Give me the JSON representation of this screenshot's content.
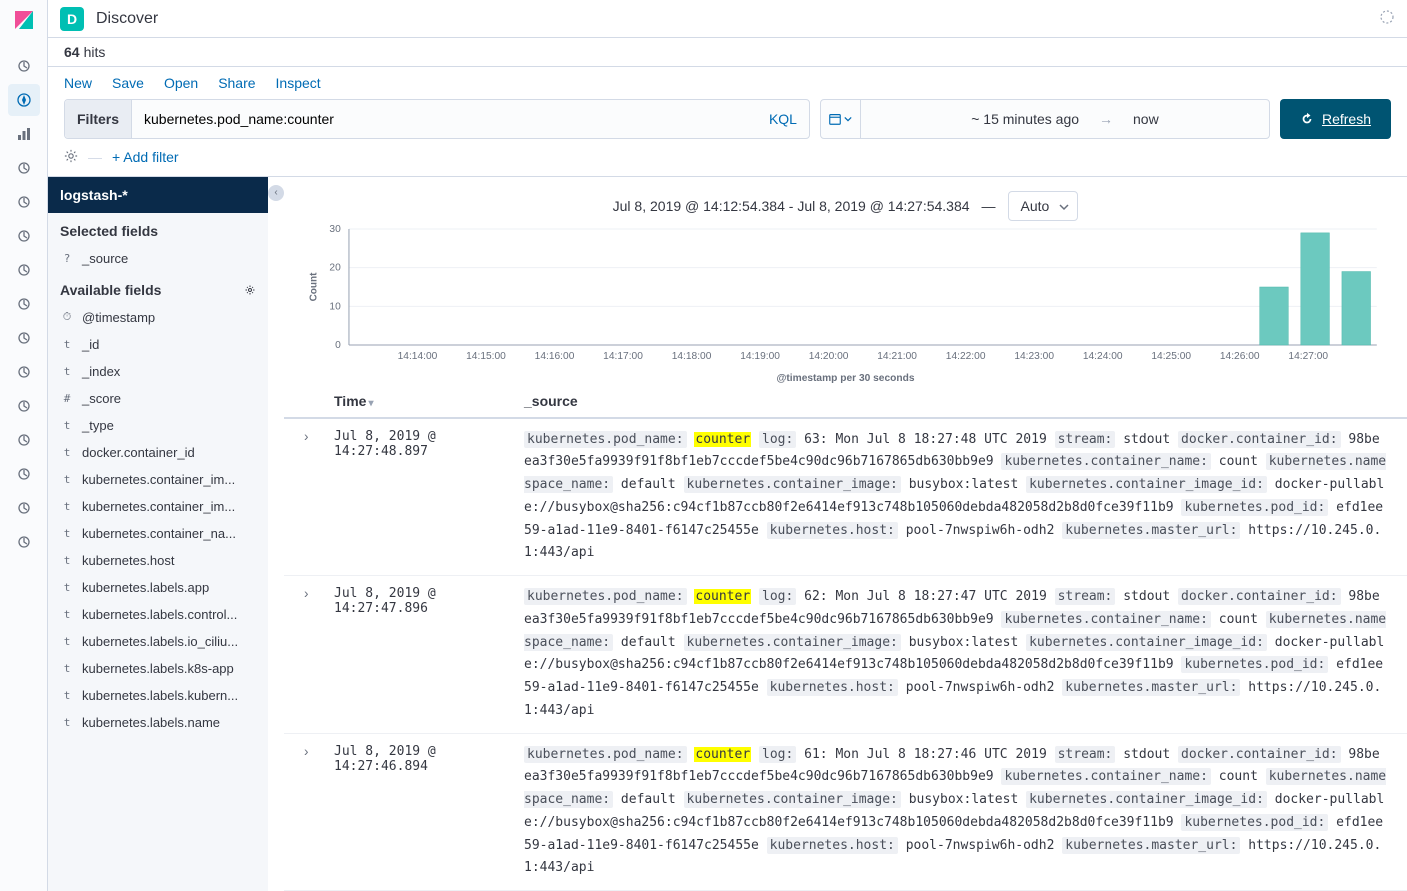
{
  "app": {
    "badge_letter": "D",
    "title": "Discover",
    "badge_bg": "#00bfb3"
  },
  "hits": {
    "count": "64",
    "label": "hits"
  },
  "actions": {
    "new": "New",
    "save": "Save",
    "open": "Open",
    "share": "Share",
    "inspect": "Inspect"
  },
  "query": {
    "filters_label": "Filters",
    "value": "kubernetes.pod_name:counter",
    "lang": "KQL"
  },
  "timepicker": {
    "from": "~ 15 minutes ago",
    "to": "now"
  },
  "refresh_label": "Refresh",
  "add_filter": "+ Add filter",
  "index_pattern": "logstash-*",
  "selected_fields_title": "Selected fields",
  "available_fields_title": "Available fields",
  "selected_fields": [
    {
      "type": "?",
      "name": "_source"
    }
  ],
  "available_fields": [
    {
      "type": "⏱",
      "name": "@timestamp"
    },
    {
      "type": "t",
      "name": "_id"
    },
    {
      "type": "t",
      "name": "_index"
    },
    {
      "type": "#",
      "name": "_score"
    },
    {
      "type": "t",
      "name": "_type"
    },
    {
      "type": "t",
      "name": "docker.container_id"
    },
    {
      "type": "t",
      "name": "kubernetes.container_im..."
    },
    {
      "type": "t",
      "name": "kubernetes.container_im..."
    },
    {
      "type": "t",
      "name": "kubernetes.container_na..."
    },
    {
      "type": "t",
      "name": "kubernetes.host"
    },
    {
      "type": "t",
      "name": "kubernetes.labels.app"
    },
    {
      "type": "t",
      "name": "kubernetes.labels.control..."
    },
    {
      "type": "t",
      "name": "kubernetes.labels.io_ciliu..."
    },
    {
      "type": "t",
      "name": "kubernetes.labels.k8s-app"
    },
    {
      "type": "t",
      "name": "kubernetes.labels.kubern..."
    },
    {
      "type": "t",
      "name": "kubernetes.labels.name"
    }
  ],
  "chart": {
    "title": "Jul 8, 2019 @ 14:12:54.384 - Jul 8, 2019 @ 14:27:54.384",
    "dash": "—",
    "interval": "Auto",
    "ylabel": "Count",
    "xlabel": "@timestamp per 30 seconds",
    "yticks": [
      "0",
      "10",
      "20",
      "30"
    ],
    "xticks": [
      "14:14:00",
      "14:15:00",
      "14:16:00",
      "14:17:00",
      "14:18:00",
      "14:19:00",
      "14:20:00",
      "14:21:00",
      "14:22:00",
      "14:23:00",
      "14:24:00",
      "14:25:00",
      "14:26:00",
      "14:27:00"
    ],
    "bar_color": "#6cc9bf",
    "bars": [
      {
        "x": 0.9,
        "h": 15
      },
      {
        "x": 0.94,
        "h": 29
      },
      {
        "x": 0.98,
        "h": 19
      }
    ],
    "ymax": 30
  },
  "columns": {
    "time": "Time",
    "source": "_source"
  },
  "highlight": "counter",
  "docs": [
    {
      "time": "Jul 8, 2019 @ 14:27:48.897",
      "fields": [
        {
          "k": "kubernetes.pod_name:",
          "v": "counter",
          "hl": true
        },
        {
          "k": "log:",
          "v": "63: Mon Jul 8 18:27:48 UTC 2019"
        },
        {
          "k": "stream:",
          "v": "stdout"
        },
        {
          "k": "docker.container_id:",
          "v": "98beea3f30e5fa9939f91f8bf1eb7cccdef5be4c90dc96b7167865db630bb9e9"
        },
        {
          "k": "kubernetes.container_name:",
          "v": "count"
        },
        {
          "k": "kubernetes.namespace_name:",
          "v": "default"
        },
        {
          "k": "kubernetes.container_image:",
          "v": "busybox:latest"
        },
        {
          "k": "kubernetes.container_image_id:",
          "v": "docker-pullable://busybox@sha256:c94cf1b87ccb80f2e6414ef913c748b105060debda482058d2b8d0fce39f11b9"
        },
        {
          "k": "kubernetes.pod_id:",
          "v": "efd1ee59-a1ad-11e9-8401-f6147c25455e"
        },
        {
          "k": "kubernetes.host:",
          "v": "pool-7nwspiw6h-odh2"
        },
        {
          "k": "kubernetes.master_url:",
          "v": "https://10.245.0.1:443/api"
        }
      ]
    },
    {
      "time": "Jul 8, 2019 @ 14:27:47.896",
      "fields": [
        {
          "k": "kubernetes.pod_name:",
          "v": "counter",
          "hl": true
        },
        {
          "k": "log:",
          "v": "62: Mon Jul 8 18:27:47 UTC 2019"
        },
        {
          "k": "stream:",
          "v": "stdout"
        },
        {
          "k": "docker.container_id:",
          "v": "98beea3f30e5fa9939f91f8bf1eb7cccdef5be4c90dc96b7167865db630bb9e9"
        },
        {
          "k": "kubernetes.container_name:",
          "v": "count"
        },
        {
          "k": "kubernetes.namespace_name:",
          "v": "default"
        },
        {
          "k": "kubernetes.container_image:",
          "v": "busybox:latest"
        },
        {
          "k": "kubernetes.container_image_id:",
          "v": "docker-pullable://busybox@sha256:c94cf1b87ccb80f2e6414ef913c748b105060debda482058d2b8d0fce39f11b9"
        },
        {
          "k": "kubernetes.pod_id:",
          "v": "efd1ee59-a1ad-11e9-8401-f6147c25455e"
        },
        {
          "k": "kubernetes.host:",
          "v": "pool-7nwspiw6h-odh2"
        },
        {
          "k": "kubernetes.master_url:",
          "v": "https://10.245.0.1:443/api"
        }
      ]
    },
    {
      "time": "Jul 8, 2019 @ 14:27:46.894",
      "fields": [
        {
          "k": "kubernetes.pod_name:",
          "v": "counter",
          "hl": true
        },
        {
          "k": "log:",
          "v": "61: Mon Jul 8 18:27:46 UTC 2019"
        },
        {
          "k": "stream:",
          "v": "stdout"
        },
        {
          "k": "docker.container_id:",
          "v": "98beea3f30e5fa9939f91f8bf1eb7cccdef5be4c90dc96b7167865db630bb9e9"
        },
        {
          "k": "kubernetes.container_name:",
          "v": "count"
        },
        {
          "k": "kubernetes.namespace_name:",
          "v": "default"
        },
        {
          "k": "kubernetes.container_image:",
          "v": "busybox:latest"
        },
        {
          "k": "kubernetes.container_image_id:",
          "v": "docker-pullable://busybox@sha256:c94cf1b87ccb80f2e6414ef913c748b105060debda482058d2b8d0fce39f11b9"
        },
        {
          "k": "kubernetes.pod_id:",
          "v": "efd1ee59-a1ad-11e9-8401-f6147c25455e"
        },
        {
          "k": "kubernetes.host:",
          "v": "pool-7nwspiw6h-odh2"
        },
        {
          "k": "kubernetes.master_url:",
          "v": "https://10.245.0.1:443/api"
        }
      ]
    }
  ],
  "nav_icons": [
    "clock",
    "compass",
    "bar-chart",
    "dashboard",
    "timelion",
    "map",
    "ml",
    "infra",
    "logs",
    "apm",
    "uptime",
    "siem",
    "monitor",
    "management",
    "dev"
  ]
}
